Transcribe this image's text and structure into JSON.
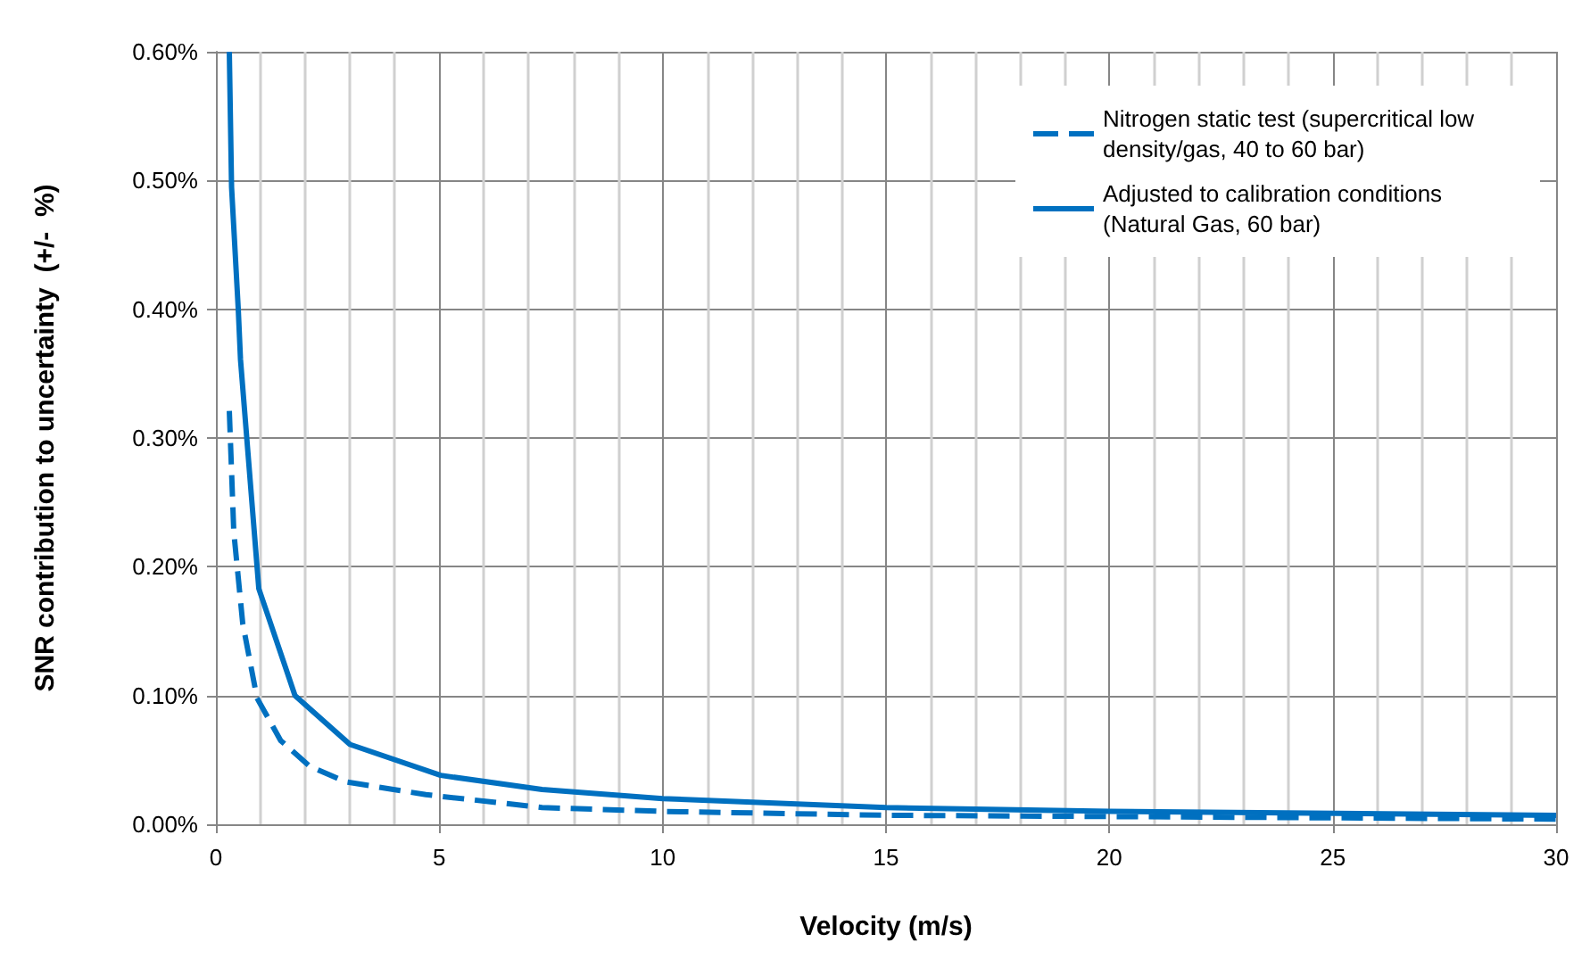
{
  "chart_data": {
    "type": "line",
    "xlabel": "Velocity (m/s)",
    "ylabel": "SNR contribution to uncertainty  (+/-  %)",
    "xlim": [
      0,
      30
    ],
    "xticks": [
      0,
      5,
      10,
      15,
      20,
      25,
      30
    ],
    "ylim": [
      0,
      0.6
    ],
    "yticks": [
      {
        "value": 0,
        "label": "0.00%"
      },
      {
        "value": 0.1,
        "label": "0.10%"
      },
      {
        "value": 0.2,
        "label": "0.20%"
      },
      {
        "value": 0.3,
        "label": "0.30%"
      },
      {
        "value": 0.4,
        "label": "0.40%"
      },
      {
        "value": 0.5,
        "label": "0.50%"
      },
      {
        "value": 0.6,
        "label": "0.60%"
      }
    ],
    "grid": true,
    "legend": "top right",
    "marker": "none",
    "series": [
      {
        "name": "Nitrogen static test (supercritical low density/gas, 40 to 60 bar)",
        "color": "#0070c0",
        "line_style": "dashed",
        "x": [
          0.3,
          0.4,
          0.6,
          0.92,
          1.45,
          2.1,
          2.9,
          4.7,
          7.3,
          10,
          15,
          20,
          30
        ],
        "values": [
          0.321,
          0.227,
          0.156,
          0.098,
          0.065,
          0.045,
          0.033,
          0.023,
          0.013,
          0.01,
          0.007,
          0.006,
          0.004
        ]
      },
      {
        "name": "Adjusted to calibration conditions (Natural Gas, 60 bar)",
        "color": "#0070c0",
        "line_style": "solid",
        "x": [
          0.3,
          0.35,
          0.5,
          0.55,
          0.96,
          1.77,
          3,
          5.03,
          7.3,
          10,
          15,
          20,
          30
        ],
        "values": [
          0.6,
          0.495,
          0.4,
          0.361,
          0.183,
          0.1,
          0.062,
          0.038,
          0.027,
          0.02,
          0.013,
          0.01,
          0.007
        ]
      }
    ]
  }
}
